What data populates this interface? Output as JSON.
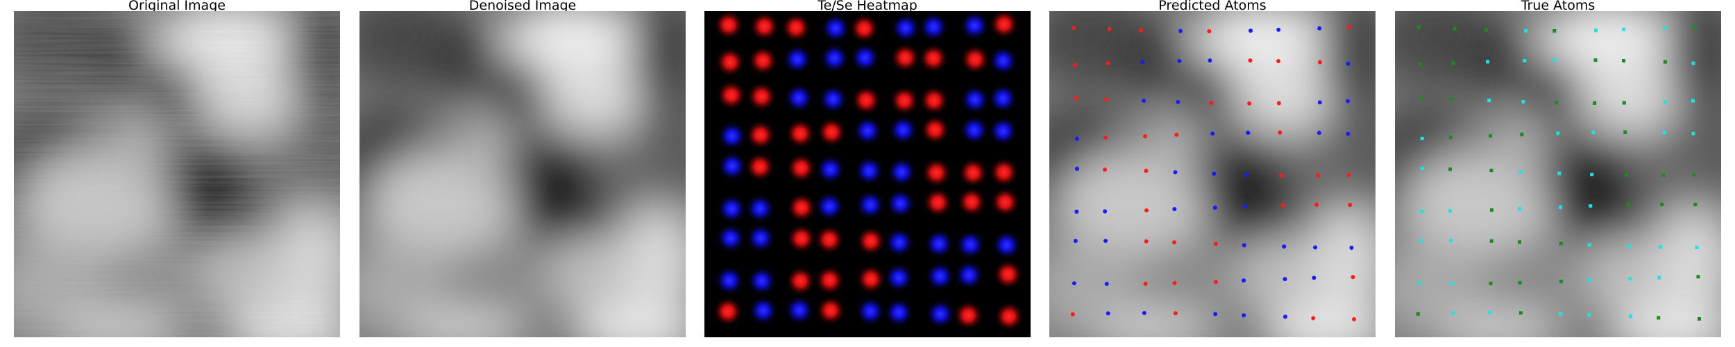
{
  "panels": [
    {
      "title": "Original Image",
      "kind": "stm-raw"
    },
    {
      "title": "Denoised Image",
      "kind": "stm-smooth"
    },
    {
      "title": "Te/Se Heatmap",
      "kind": "heatmap"
    },
    {
      "title": "Predicted Atoms",
      "kind": "predicted"
    },
    {
      "title": "True Atoms",
      "kind": "true"
    }
  ],
  "colors": {
    "background": "#ffffff",
    "heatmap_bg": "#000000",
    "te_red": "#ff1a1a",
    "se_blue": "#1a1aff",
    "true_green": "#1a8c1a",
    "true_cyan": "#18e6e6"
  }
}
